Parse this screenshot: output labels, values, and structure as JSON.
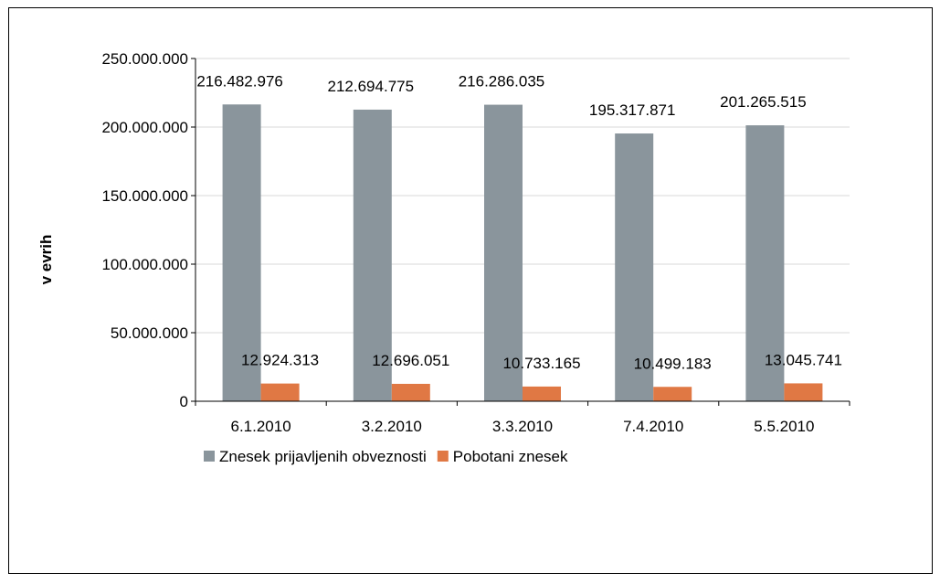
{
  "chart_data": {
    "type": "bar",
    "title": "",
    "xlabel": "",
    "ylabel": "v  evrih",
    "categories": [
      "6.1.2010",
      "3.2.2010",
      "3.3.2010",
      "7.4.2010",
      "5.5.2010"
    ],
    "series": [
      {
        "name": "Znesek prijavljenih obveznosti",
        "color": "#8A959C",
        "values": [
          216482976,
          212694775,
          216286035,
          195317871,
          201265515
        ],
        "labels": [
          "216.482.976",
          "212.694.775",
          "216.286.035",
          "195.317.871",
          "201.265.515"
        ]
      },
      {
        "name": "Pobotani znesek",
        "color": "#E07844",
        "values": [
          12924313,
          12696051,
          10733165,
          10499183,
          13045741
        ],
        "labels": [
          "12.924.313",
          "12.696.051",
          "10.733.165",
          "10.499.183",
          "13.045.741"
        ]
      }
    ],
    "ylim": [
      0,
      250000000
    ],
    "yticks": [
      0,
      50000000,
      100000000,
      150000000,
      200000000,
      250000000
    ],
    "ytick_labels": [
      "0",
      "50.000.000",
      "100.000.000",
      "150.000.000",
      "200.000.000",
      "250.000.000"
    ],
    "grid": true,
    "legend_position": "bottom"
  }
}
